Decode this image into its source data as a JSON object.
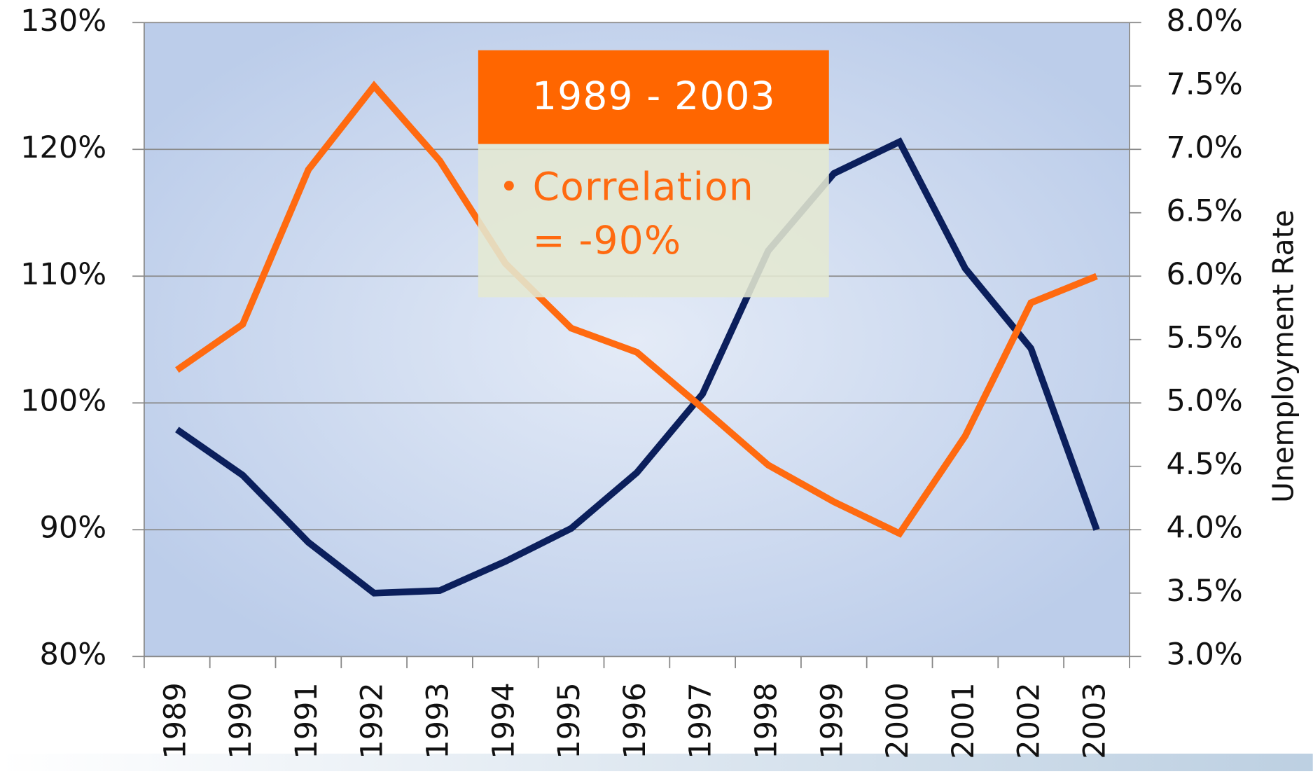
{
  "chart_data": {
    "type": "line",
    "categories": [
      "1989",
      "1990",
      "1991",
      "1992",
      "1993",
      "1994",
      "1995",
      "1996",
      "1997",
      "1998",
      "1999",
      "2000",
      "2001",
      "2002",
      "2003"
    ],
    "series": [
      {
        "color": "#0b1f5c",
        "axis": "y",
        "values": [
          97.9,
          94.3,
          89.0,
          85.0,
          85.2,
          87.5,
          90.1,
          94.5,
          100.7,
          112.0,
          118.1,
          120.6,
          110.6,
          104.3,
          90.0
        ]
      },
      {
        "color": "#ff6a10",
        "axis": "y2",
        "values": [
          5.26,
          5.62,
          6.84,
          7.5,
          6.91,
          6.1,
          5.59,
          5.4,
          4.96,
          4.51,
          4.22,
          3.97,
          4.74,
          5.79,
          6.0
        ]
      }
    ],
    "ylim": [
      80,
      130
    ],
    "yticks": [
      {
        "value": 80,
        "label": "80%"
      },
      {
        "value": 90,
        "label": "90%"
      },
      {
        "value": 100,
        "label": "100%"
      },
      {
        "value": 110,
        "label": "110%"
      },
      {
        "value": 120,
        "label": "120%"
      },
      {
        "value": 130,
        "label": "130%"
      }
    ],
    "y2lim": [
      3,
      8
    ],
    "y2ticks": [
      {
        "value": 3,
        "label": "3.0%"
      },
      {
        "value": 3.5,
        "label": "3.5%"
      },
      {
        "value": 4,
        "label": "4.0%"
      },
      {
        "value": 4.5,
        "label": "4.5%"
      },
      {
        "value": 5,
        "label": "5.0%"
      },
      {
        "value": 5.5,
        "label": "5.5%"
      },
      {
        "value": 6,
        "label": "6.0%"
      },
      {
        "value": 6.5,
        "label": "6.5%"
      },
      {
        "value": 7,
        "label": "7.0%"
      },
      {
        "value": 7.5,
        "label": "7.5%"
      },
      {
        "value": 8,
        "label": "8.0%"
      }
    ],
    "y2_label": "Unemployment Rate",
    "grid": true,
    "annotation": {
      "title": "1989 - 2003",
      "bullet": "•",
      "lines": [
        "Correlation",
        "= -90%"
      ],
      "title_color": "#ff6600",
      "text_color": "#ff6a10"
    }
  }
}
